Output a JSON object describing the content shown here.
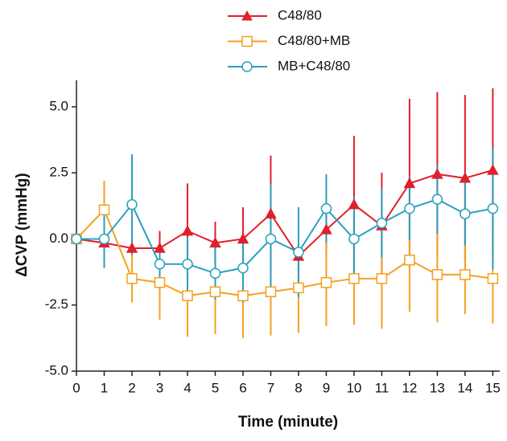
{
  "chart_data": {
    "type": "line",
    "x_label": "Time (minute)",
    "y_label": "ΔCVP (mmHg)",
    "x": [
      0,
      1,
      2,
      3,
      4,
      5,
      6,
      7,
      8,
      9,
      10,
      11,
      12,
      13,
      14,
      15
    ],
    "xlim": [
      0,
      15.25
    ],
    "xticks": [
      0,
      1,
      2,
      3,
      4,
      5,
      6,
      7,
      8,
      9,
      10,
      11,
      12,
      13,
      14,
      15
    ],
    "ylim": [
      -5,
      6
    ],
    "yticks": [
      {
        "value": -5,
        "label": "-5.0"
      },
      {
        "value": -2.5,
        "label": "-2.5"
      },
      {
        "value": 0,
        "label": "0.0"
      },
      {
        "value": 2.5,
        "label": "2.5"
      },
      {
        "value": 5,
        "label": "5.0"
      }
    ],
    "series": [
      {
        "name": "C48/80",
        "color": "#e0202a",
        "marker": "triangle",
        "values": [
          0.0,
          -0.15,
          -0.35,
          -0.35,
          0.3,
          -0.15,
          0.0,
          0.95,
          -0.65,
          0.35,
          1.3,
          0.5,
          2.1,
          2.45,
          2.3,
          2.6
        ],
        "errors": [
          0.1,
          0.3,
          0.3,
          0.65,
          1.8,
          0.8,
          1.2,
          2.2,
          0.5,
          1.0,
          2.6,
          2.0,
          3.2,
          3.1,
          3.15,
          3.1
        ]
      },
      {
        "name": "C48/80+MB",
        "color": "#f5a020",
        "marker": "square",
        "values": [
          0.0,
          1.1,
          -1.5,
          -1.65,
          -2.15,
          -2.0,
          -2.15,
          -2.0,
          -1.85,
          -1.65,
          -1.5,
          -1.5,
          -0.8,
          -1.35,
          -1.35,
          -1.5
        ],
        "errors": [
          0.1,
          1.1,
          0.9,
          1.4,
          1.55,
          1.6,
          1.6,
          1.65,
          1.7,
          1.65,
          1.75,
          1.9,
          1.95,
          1.8,
          1.5,
          1.7
        ]
      },
      {
        "name": "MB+C48/80",
        "color": "#2aa0c0",
        "marker": "circle",
        "values": [
          0.0,
          0.0,
          1.3,
          -0.95,
          -0.95,
          -1.3,
          -1.1,
          0.0,
          -0.5,
          1.15,
          0.0,
          0.6,
          1.15,
          1.5,
          0.95,
          1.15
        ],
        "errors": [
          0.1,
          1.1,
          1.9,
          0.8,
          1.0,
          1.0,
          1.3,
          2.1,
          1.7,
          1.3,
          1.6,
          1.3,
          1.2,
          1.3,
          1.2,
          2.3
        ]
      }
    ]
  }
}
